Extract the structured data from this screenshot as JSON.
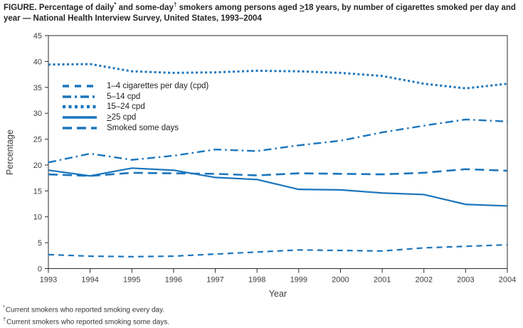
{
  "title": {
    "part1": "FIGURE. Percentage of daily",
    "sup1": "*",
    "part2": " and some-day",
    "sup2": "†",
    "part3": " smokers among persons aged ",
    "geq": ">",
    "part4": "18 years, by number of cigarettes smoked per day and year — National Health Interview Survey, United States, 1993–2004"
  },
  "footnotes": {
    "f1_marker": "*",
    "f1_text": "Current smokers who reported smoking every day.",
    "f2_marker": "†",
    "f2_text": "Current smokers who reported smoking some days."
  },
  "chart_data": {
    "type": "line",
    "title": "Percentage of daily and some-day smokers among persons aged ≥18 years, by number of cigarettes smoked per day and year",
    "xlabel": "Year",
    "ylabel": "Percentage",
    "x": [
      1993,
      1994,
      1995,
      1996,
      1997,
      1998,
      1999,
      2000,
      2001,
      2002,
      2003,
      2004
    ],
    "ylim": [
      0,
      45
    ],
    "y_ticks": [
      0,
      5,
      10,
      15,
      20,
      25,
      30,
      35,
      40,
      45
    ],
    "grid": false,
    "legend_position": "top-left-inside",
    "line_color": "#1b75bc",
    "series": [
      {
        "name": "1–4 cigarettes per day (cpd)",
        "dash": "dash",
        "values": [
          2.7,
          2.4,
          2.3,
          2.4,
          2.8,
          3.2,
          3.6,
          3.5,
          3.4,
          4.0,
          4.3,
          4.6
        ]
      },
      {
        "name": "5–14 cpd",
        "dash": "dashdot",
        "values": [
          20.5,
          22.2,
          21.0,
          21.8,
          23.0,
          22.7,
          23.8,
          24.7,
          26.3,
          27.6,
          28.8,
          28.4
        ]
      },
      {
        "name": "15–24 cpd",
        "dash": "dot",
        "values": [
          39.4,
          39.5,
          38.1,
          37.8,
          37.9,
          38.2,
          38.1,
          37.8,
          37.2,
          35.7,
          34.8,
          35.7
        ]
      },
      {
        "name_prefix": ">",
        "name": "25 cpd",
        "dash": "solid",
        "values": [
          19.0,
          17.9,
          19.4,
          19.0,
          17.6,
          17.2,
          15.3,
          15.2,
          14.6,
          14.3,
          12.4,
          12.1
        ]
      },
      {
        "name": "Smoked some days",
        "dash": "longdash",
        "values": [
          18.2,
          17.9,
          18.5,
          18.4,
          18.3,
          18.0,
          18.4,
          18.3,
          18.2,
          18.5,
          19.2,
          18.9
        ]
      }
    ]
  }
}
